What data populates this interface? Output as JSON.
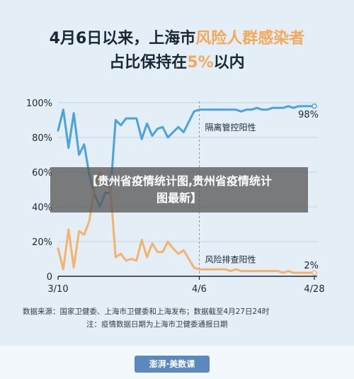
{
  "title": {
    "line1": "4月6日以来，上海市",
    "line1_highlight": "风险人群感染者",
    "line2_pre": "占比保持在",
    "line2_highlight": "5%",
    "line2_post": "以内"
  },
  "banner": {
    "line1": "【贵州省疫情统计图,贵州省疫情统计",
    "line2": "图最新】"
  },
  "notes": {
    "source": "数据来源：国家卫健委、上海市卫健委和上海发布；数据截至4月27日24时",
    "note": "注：疫情数据日期为上海市卫健委通报日期"
  },
  "logo": {
    "text": "澎湃·美数课"
  },
  "colors": {
    "blue": "#4aa3dc",
    "orange": "#f5b26b",
    "background": "#e4eef7",
    "axis": "#1b2733"
  },
  "chart_data": {
    "type": "line",
    "x_tick_labels": [
      "3/10",
      "4/6",
      "4/28"
    ],
    "y_tick_labels": [
      "0",
      "20%",
      "40%",
      "60%",
      "80%",
      "100%"
    ],
    "ylim": [
      0,
      100
    ],
    "vertical_reference": "4/6",
    "x": [
      "3/10",
      "3/11",
      "3/12",
      "3/13",
      "3/14",
      "3/15",
      "3/16",
      "3/17",
      "3/18",
      "3/19",
      "3/20",
      "3/21",
      "3/22",
      "3/23",
      "3/24",
      "3/25",
      "3/26",
      "3/27",
      "3/28",
      "3/29",
      "3/30",
      "3/31",
      "4/1",
      "4/2",
      "4/3",
      "4/4",
      "4/5",
      "4/6",
      "4/7",
      "4/8",
      "4/9",
      "4/10",
      "4/11",
      "4/12",
      "4/13",
      "4/14",
      "4/15",
      "4/16",
      "4/17",
      "4/18",
      "4/19",
      "4/20",
      "4/21",
      "4/22",
      "4/23",
      "4/24",
      "4/25",
      "4/26",
      "4/27",
      "4/28"
    ],
    "series": [
      {
        "name": "隔离管控阳性",
        "color": "#4aa3dc",
        "end_label": "98%",
        "values": [
          84,
          96,
          74,
          94,
          70,
          76,
          58,
          47,
          40,
          48,
          48,
          90,
          87,
          91,
          91,
          91,
          79,
          88,
          81,
          85,
          86,
          80,
          83,
          86,
          83,
          89,
          95,
          96,
          96,
          96,
          96,
          96,
          96,
          96,
          96,
          95,
          96,
          96,
          97,
          96,
          96,
          97,
          97,
          97,
          98,
          97,
          98,
          98,
          98,
          98
        ]
      },
      {
        "name": "风险排查阳性",
        "color": "#f5b26b",
        "end_label": "2%",
        "values": [
          16,
          4,
          27,
          5,
          26,
          24,
          32,
          52,
          60,
          52,
          51,
          11,
          13,
          9,
          10,
          9,
          21,
          11,
          19,
          14,
          14,
          20,
          16,
          13,
          15,
          10,
          5,
          4,
          4,
          4,
          4,
          4,
          4,
          3,
          4,
          3,
          3,
          3,
          3,
          3,
          3,
          3,
          3,
          2,
          3,
          2,
          2,
          2,
          2,
          2
        ]
      }
    ]
  }
}
